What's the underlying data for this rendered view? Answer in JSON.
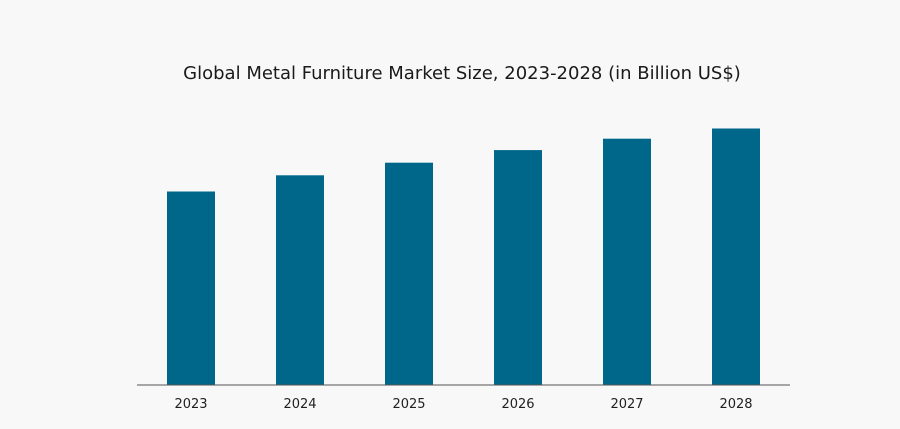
{
  "chart_data": {
    "type": "bar",
    "title": "Global Metal Furniture Market Size, 2023-2028 (in Billion US$)",
    "xlabel": "",
    "ylabel": "",
    "categories": [
      "2023",
      "2024",
      "2025",
      "2026",
      "2027",
      "2028"
    ],
    "values": [
      64.5,
      69.9,
      74.1,
      78.3,
      82.1,
      85.5
    ],
    "ylim": [
      0,
      100
    ],
    "grid": false,
    "legend": "none",
    "bar_color": "#00668a",
    "axis_color": "#555555"
  }
}
